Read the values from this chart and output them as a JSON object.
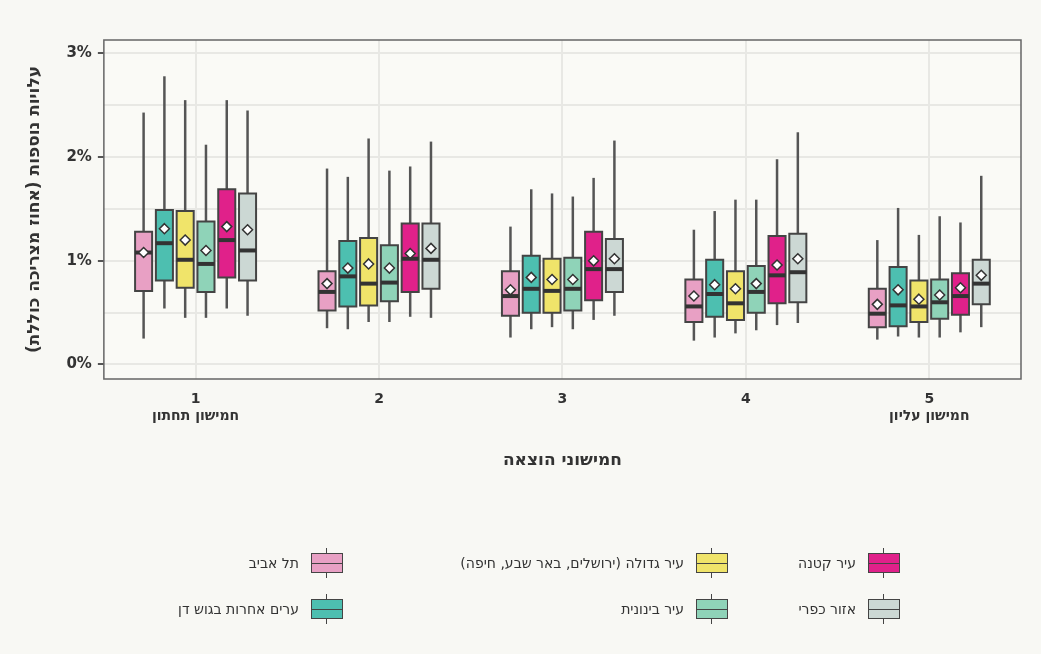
{
  "chart_data": {
    "type": "box",
    "xlabel": "חמישוני הוצאה",
    "ylabel": "עלויות נוספות (אחוז מצריכה כוללת)",
    "categories": [
      "1\nחמישון תחתון",
      "2",
      "3",
      "4",
      "5\nחמישון עליון"
    ],
    "ylim": [
      -0.14,
      3.13
    ],
    "yticks": [
      {
        "value": 0,
        "label": "0%"
      },
      {
        "value": 0.5,
        "label": null
      },
      {
        "value": 1,
        "label": "1%"
      },
      {
        "value": 1.5,
        "label": null
      },
      {
        "value": 2,
        "label": "2%"
      },
      {
        "value": 2.5,
        "label": null
      },
      {
        "value": 3,
        "label": "3%"
      }
    ],
    "grid": true,
    "legend": "bottom",
    "marker": "diamond",
    "series": [
      {
        "name": "תל אביב",
        "color": "#e8a0c4",
        "boxes": [
          {
            "low": 0.25,
            "q1": 0.71,
            "median": 1.08,
            "q3": 1.28,
            "high": 2.43,
            "mean": 1.08
          },
          {
            "low": 0.35,
            "q1": 0.52,
            "median": 0.7,
            "q3": 0.9,
            "high": 1.89,
            "mean": 0.78
          },
          {
            "low": 0.26,
            "q1": 0.47,
            "median": 0.66,
            "q3": 0.9,
            "high": 1.33,
            "mean": 0.72
          },
          {
            "low": 0.23,
            "q1": 0.41,
            "median": 0.56,
            "q3": 0.82,
            "high": 1.3,
            "mean": 0.66
          },
          {
            "low": 0.24,
            "q1": 0.36,
            "median": 0.49,
            "q3": 0.73,
            "high": 1.2,
            "mean": 0.58
          }
        ]
      },
      {
        "name": "ערים אחרות בגוש דן",
        "color": "#4dbfb0",
        "boxes": [
          {
            "low": 0.54,
            "q1": 0.81,
            "median": 1.17,
            "q3": 1.49,
            "high": 2.78,
            "mean": 1.31
          },
          {
            "low": 0.34,
            "q1": 0.56,
            "median": 0.85,
            "q3": 1.19,
            "high": 1.81,
            "mean": 0.93
          },
          {
            "low": 0.34,
            "q1": 0.5,
            "median": 0.73,
            "q3": 1.05,
            "high": 1.69,
            "mean": 0.84
          },
          {
            "low": 0.26,
            "q1": 0.46,
            "median": 0.68,
            "q3": 1.01,
            "high": 1.48,
            "mean": 0.77
          },
          {
            "low": 0.27,
            "q1": 0.37,
            "median": 0.57,
            "q3": 0.94,
            "high": 1.51,
            "mean": 0.72
          }
        ]
      },
      {
        "name": "עיר גדולה (ירושלים, באר שבע, חיפה)",
        "color": "#f0e46a",
        "boxes": [
          {
            "low": 0.45,
            "q1": 0.74,
            "median": 1.01,
            "q3": 1.48,
            "high": 2.55,
            "mean": 1.2
          },
          {
            "low": 0.41,
            "q1": 0.57,
            "median": 0.78,
            "q3": 1.22,
            "high": 2.18,
            "mean": 0.97
          },
          {
            "low": 0.36,
            "q1": 0.5,
            "median": 0.71,
            "q3": 1.02,
            "high": 1.65,
            "mean": 0.82
          },
          {
            "low": 0.3,
            "q1": 0.43,
            "median": 0.59,
            "q3": 0.9,
            "high": 1.59,
            "mean": 0.73
          },
          {
            "low": 0.26,
            "q1": 0.41,
            "median": 0.56,
            "q3": 0.81,
            "high": 1.25,
            "mean": 0.63
          }
        ]
      },
      {
        "name": "עיר בינונית",
        "color": "#8fd3b8",
        "boxes": [
          {
            "low": 0.45,
            "q1": 0.7,
            "median": 0.97,
            "q3": 1.38,
            "high": 2.12,
            "mean": 1.1
          },
          {
            "low": 0.41,
            "q1": 0.61,
            "median": 0.79,
            "q3": 1.15,
            "high": 1.87,
            "mean": 0.93
          },
          {
            "low": 0.34,
            "q1": 0.52,
            "median": 0.73,
            "q3": 1.03,
            "high": 1.62,
            "mean": 0.82
          },
          {
            "low": 0.33,
            "q1": 0.5,
            "median": 0.7,
            "q3": 0.95,
            "high": 1.59,
            "mean": 0.78
          },
          {
            "low": 0.26,
            "q1": 0.44,
            "median": 0.6,
            "q3": 0.82,
            "high": 1.43,
            "mean": 0.67
          }
        ]
      },
      {
        "name": "עיר קטנה",
        "color": "#e0218a",
        "boxes": [
          {
            "low": 0.54,
            "q1": 0.84,
            "median": 1.2,
            "q3": 1.69,
            "high": 2.55,
            "mean": 1.33
          },
          {
            "low": 0.46,
            "q1": 0.7,
            "median": 1.02,
            "q3": 1.36,
            "high": 1.91,
            "mean": 1.07
          },
          {
            "low": 0.43,
            "q1": 0.62,
            "median": 0.92,
            "q3": 1.28,
            "high": 1.8,
            "mean": 1.0
          },
          {
            "low": 0.38,
            "q1": 0.59,
            "median": 0.86,
            "q3": 1.24,
            "high": 1.98,
            "mean": 0.96
          },
          {
            "low": 0.31,
            "q1": 0.48,
            "median": 0.66,
            "q3": 0.88,
            "high": 1.37,
            "mean": 0.74
          }
        ]
      },
      {
        "name": "אזור כפרי",
        "color": "#ccd8d4",
        "boxes": [
          {
            "low": 0.47,
            "q1": 0.81,
            "median": 1.1,
            "q3": 1.65,
            "high": 2.45,
            "mean": 1.3
          },
          {
            "low": 0.45,
            "q1": 0.73,
            "median": 1.01,
            "q3": 1.36,
            "high": 2.15,
            "mean": 1.12
          },
          {
            "low": 0.47,
            "q1": 0.7,
            "median": 0.92,
            "q3": 1.21,
            "high": 2.16,
            "mean": 1.02
          },
          {
            "low": 0.4,
            "q1": 0.6,
            "median": 0.89,
            "q3": 1.26,
            "high": 2.24,
            "mean": 1.02
          },
          {
            "low": 0.36,
            "q1": 0.58,
            "median": 0.78,
            "q3": 1.01,
            "high": 1.82,
            "mean": 0.86
          }
        ]
      }
    ]
  }
}
